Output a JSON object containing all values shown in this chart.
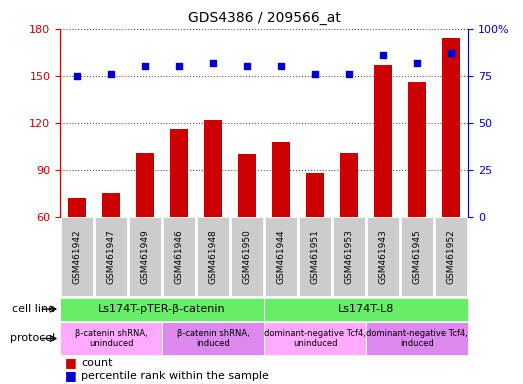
{
  "title": "GDS4386 / 209566_at",
  "samples": [
    "GSM461942",
    "GSM461947",
    "GSM461949",
    "GSM461946",
    "GSM461948",
    "GSM461950",
    "GSM461944",
    "GSM461951",
    "GSM461953",
    "GSM461943",
    "GSM461945",
    "GSM461952"
  ],
  "counts": [
    72,
    75,
    101,
    116,
    122,
    100,
    108,
    88,
    101,
    157,
    146,
    174
  ],
  "percentiles": [
    75,
    76,
    80,
    80,
    82,
    80,
    80,
    76,
    76,
    86,
    82,
    87
  ],
  "ylim_left": [
    60,
    180
  ],
  "ylim_right": [
    0,
    100
  ],
  "yticks_left": [
    60,
    90,
    120,
    150,
    180
  ],
  "yticks_right": [
    0,
    25,
    50,
    75,
    100
  ],
  "ytick_right_labels": [
    "0",
    "25",
    "50",
    "75",
    "100%"
  ],
  "bar_color": "#cc0000",
  "dot_color": "#0000cc",
  "cell_line_groups": [
    {
      "label": "Ls174T-pTER-β-catenin",
      "start": 0,
      "end": 6,
      "color": "#66ee66"
    },
    {
      "label": "Ls174T-L8",
      "start": 6,
      "end": 12,
      "color": "#66ee66"
    }
  ],
  "protocol_groups": [
    {
      "label": "β-catenin shRNA,\nuninduced",
      "start": 0,
      "end": 3,
      "color": "#ffaaff"
    },
    {
      "label": "β-catenin shRNA,\ninduced",
      "start": 3,
      "end": 6,
      "color": "#dd88ee"
    },
    {
      "label": "dominant-negative Tcf4,\nuninduced",
      "start": 6,
      "end": 9,
      "color": "#ffaaff"
    },
    {
      "label": "dominant-negative Tcf4,\ninduced",
      "start": 9,
      "end": 12,
      "color": "#dd88ee"
    }
  ],
  "cell_line_label": "cell line",
  "protocol_label": "protocol",
  "legend_count": "count",
  "legend_percentile": "percentile rank within the sample",
  "left_axis_color": "#cc0000",
  "right_axis_color": "#0000cc",
  "grid_color": "#555555",
  "tick_bg_color": "#cccccc",
  "bg_color": "#ffffff"
}
